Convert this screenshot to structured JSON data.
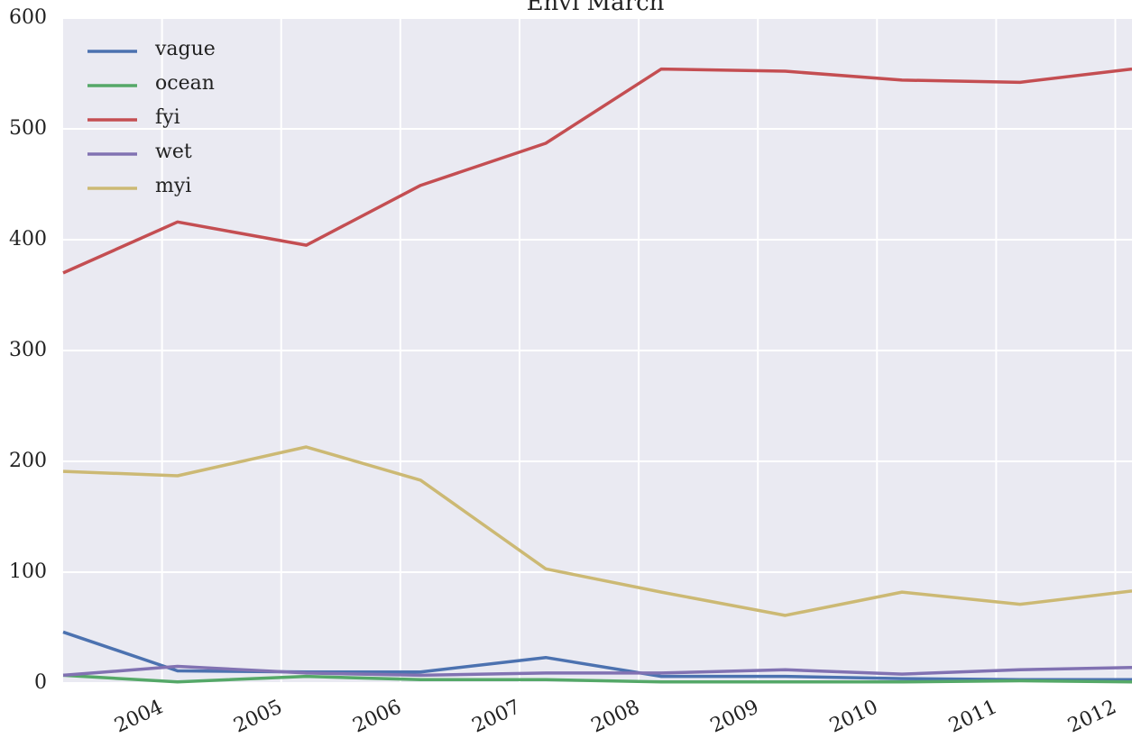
{
  "chart_data": {
    "type": "line",
    "title": "Envi March",
    "x": [
      2003.17,
      2004.13,
      2005.21,
      2006.17,
      2007.22,
      2008.19,
      2009.23,
      2010.21,
      2011.2,
      2012.14
    ],
    "series": [
      {
        "name": "vague",
        "color": "#4c72b0",
        "values": [
          46,
          11,
          10,
          10,
          23,
          6,
          6,
          4,
          3,
          3
        ]
      },
      {
        "name": "ocean",
        "color": "#55a868",
        "values": [
          7,
          1,
          6,
          3,
          3,
          1,
          1,
          1,
          2,
          1
        ]
      },
      {
        "name": "fyi",
        "color": "#c44e52",
        "values": [
          370,
          416,
          395,
          449,
          487,
          554,
          552,
          544,
          542,
          554
        ]
      },
      {
        "name": "wet",
        "color": "#8172b2",
        "values": [
          7,
          15,
          9,
          7,
          9,
          9,
          12,
          8,
          12,
          14
        ]
      },
      {
        "name": "myi",
        "color": "#ccb974",
        "values": [
          191,
          187,
          213,
          183,
          103,
          82,
          61,
          82,
          71,
          83
        ]
      }
    ],
    "xlim": [
      2003.17,
      2012.14
    ],
    "xticks": [
      2004,
      2005,
      2006,
      2007,
      2008,
      2009,
      2010,
      2011,
      2012
    ],
    "ylim": [
      0,
      600
    ],
    "yticks": [
      0,
      100,
      200,
      300,
      400,
      500,
      600
    ],
    "grid": true,
    "legend": "upper left"
  }
}
